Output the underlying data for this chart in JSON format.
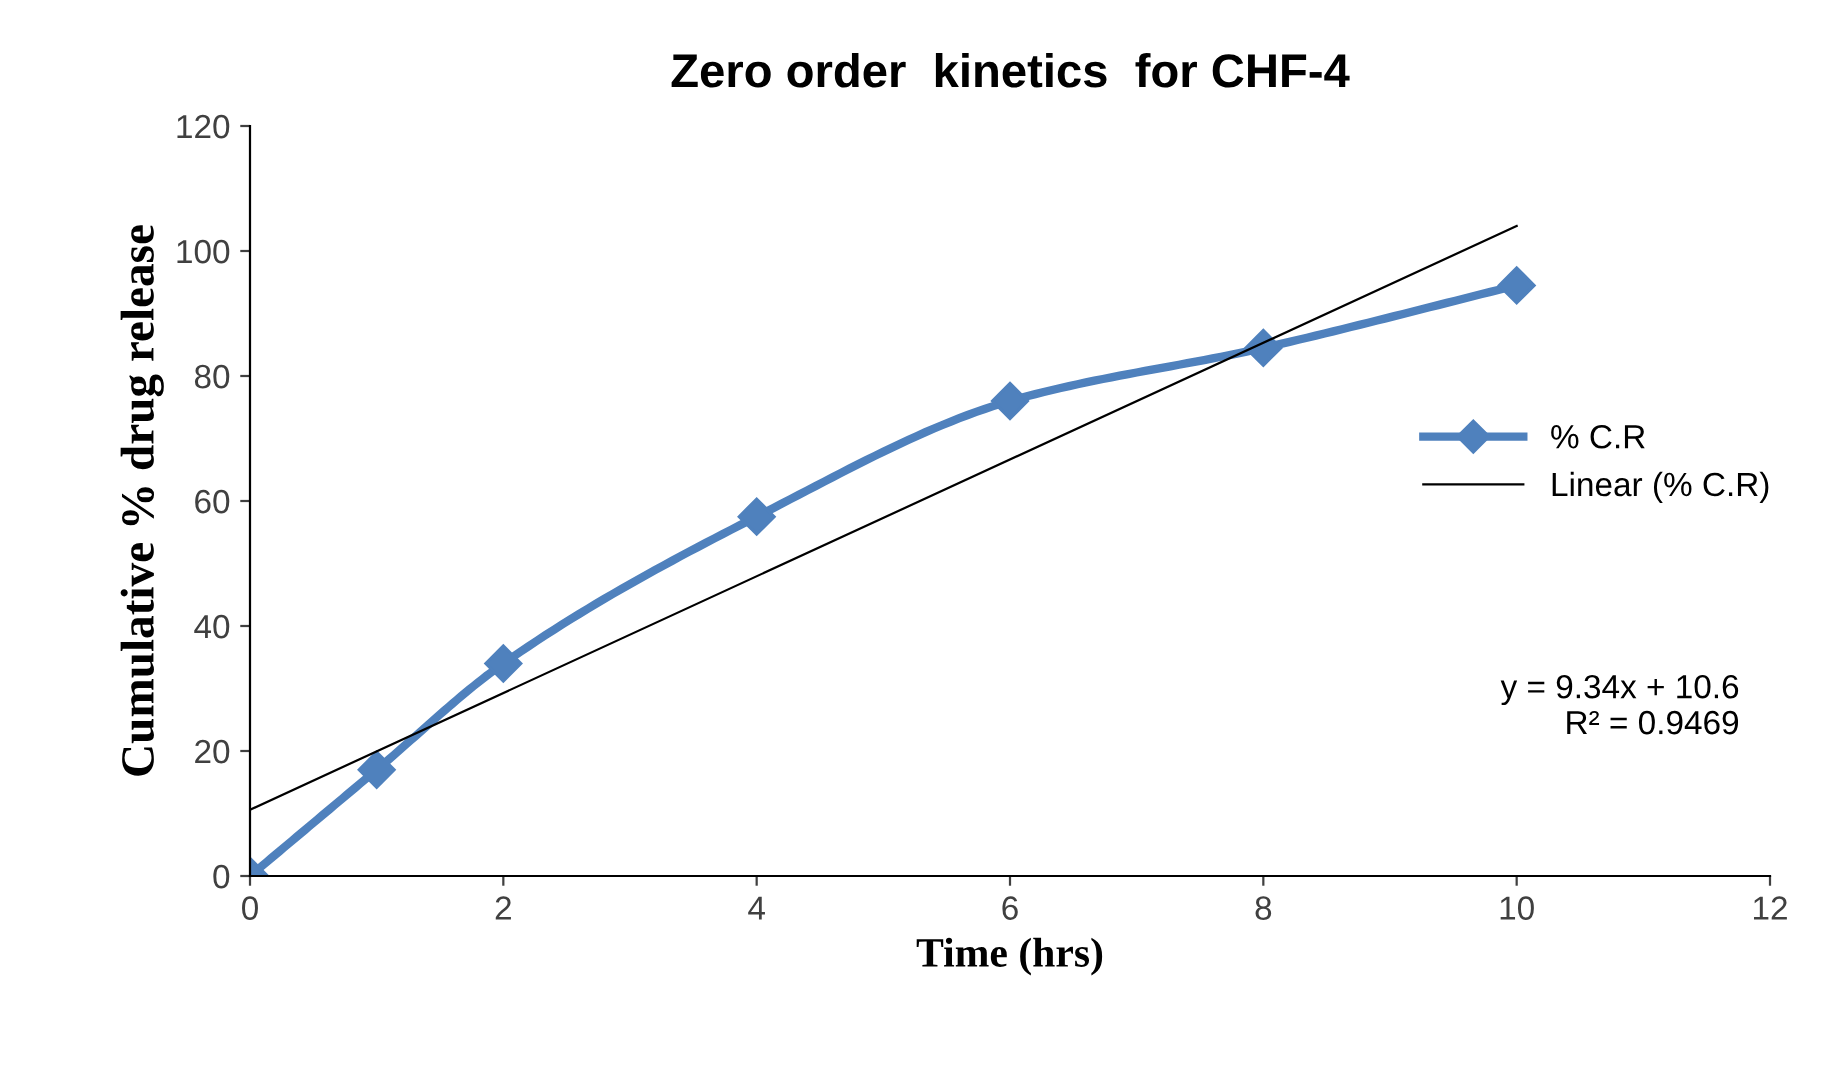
{
  "chart_data": {
    "type": "line",
    "title": "Zero order  kinetics  for CHF-4",
    "xlabel": "Time (hrs)",
    "ylabel": "Cumulative % drug release",
    "x": [
      0,
      1,
      2,
      4,
      6,
      8,
      10
    ],
    "series": [
      {
        "name": "% C.R",
        "color": "#4f81bd",
        "values": [
          0,
          17,
          34,
          57.5,
          76,
          84.5,
          94.5
        ],
        "marker": "diamond"
      },
      {
        "name": "Linear (% C.R)",
        "color": "#000000",
        "type": "line",
        "x": [
          0,
          10
        ],
        "values": [
          10.6,
          104
        ],
        "marker": "none"
      }
    ],
    "xlim": [
      0,
      12
    ],
    "xticks": [
      0,
      2,
      4,
      6,
      8,
      10,
      12
    ],
    "ylim": [
      0,
      120
    ],
    "yticks": [
      0,
      20,
      40,
      60,
      80,
      100,
      120
    ],
    "grid": false,
    "legend": "right",
    "annotations": [
      "y = 9.34x + 10.6\nR² = 0.9469"
    ]
  }
}
